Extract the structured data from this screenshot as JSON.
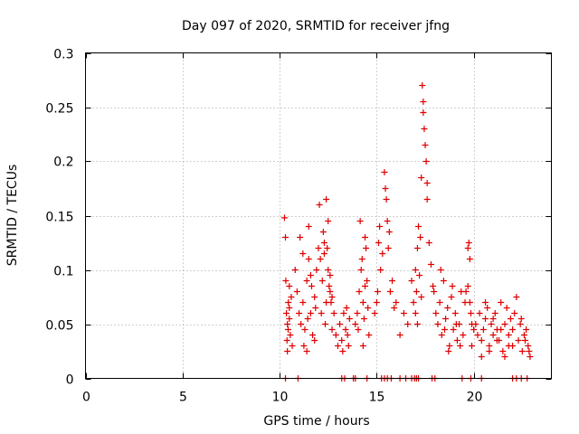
{
  "chart_data": {
    "type": "scatter",
    "title": "Day 097 of 2020, SRMTID for receiver jfng",
    "xlabel": "GPS time / hours",
    "ylabel": "SRMTID / TECUs",
    "xlim": [
      0,
      24
    ],
    "ylim": [
      0,
      0.3
    ],
    "xticks": [
      0,
      5,
      10,
      15,
      20
    ],
    "yticks": [
      0,
      0.05,
      0.1,
      0.15,
      0.2,
      0.25,
      0.3
    ],
    "xtick_labels": [
      "0",
      "5",
      "10",
      "15",
      "20"
    ],
    "ytick_labels": [
      "0",
      "0.05",
      "0.1",
      "0.15",
      "0.2",
      "0.25",
      "0.3"
    ],
    "grid": true,
    "marker": "+",
    "color": "#e00000",
    "series": [
      {
        "name": "SRMTID",
        "x": [
          10.25,
          10.3,
          10.35,
          10.4,
          10.45,
          10.5,
          10.55,
          10.32,
          10.38,
          10.44,
          10.5,
          10.6,
          10.65,
          10.4,
          10.5,
          10.8,
          10.9,
          11.0,
          11.1,
          11.2,
          11.3,
          11.4,
          11.5,
          11.6,
          11.7,
          11.8,
          11.9,
          12.0,
          11.05,
          11.25,
          11.45,
          11.65,
          11.85,
          11.5,
          11.8,
          11.2,
          11.4,
          11.6,
          12.05,
          12.1,
          12.2,
          12.3,
          12.4,
          12.5,
          12.6,
          12.15,
          12.25,
          12.35,
          12.45,
          12.55,
          12.65,
          12.7,
          12.8,
          12.9,
          13.0,
          12.4,
          12.5,
          12.3,
          12.6,
          12.7,
          13.1,
          13.2,
          13.3,
          13.4,
          13.5,
          13.6,
          13.25,
          13.45,
          13.55,
          13.9,
          14.0,
          14.1,
          14.2,
          14.3,
          14.4,
          14.5,
          14.05,
          14.15,
          14.25,
          14.35,
          14.45,
          14.55,
          14.6,
          14.3,
          14.4,
          14.9,
          15.0,
          15.05,
          15.1,
          15.15,
          15.2,
          15.3,
          15.4,
          15.45,
          15.5,
          15.55,
          15.6,
          15.65,
          15.7,
          15.8,
          15.9,
          16.0,
          16.2,
          16.4,
          16.6,
          16.8,
          16.9,
          17.0,
          17.05,
          17.1,
          17.15,
          17.2,
          17.25,
          17.3,
          17.35,
          17.4,
          17.45,
          17.5,
          17.55,
          17.6,
          17.7,
          17.8,
          17.9,
          17.0,
          17.1,
          17.3,
          17.4,
          17.6,
          17.95,
          18.05,
          18.15,
          18.25,
          18.35,
          18.45,
          18.55,
          18.65,
          18.75,
          18.85,
          18.95,
          19.05,
          19.15,
          19.25,
          19.35,
          19.45,
          19.55,
          18.3,
          18.5,
          18.7,
          18.9,
          19.1,
          19.3,
          19.6,
          19.7,
          19.75,
          19.8,
          19.85,
          19.9,
          20.0,
          19.7,
          19.8,
          19.9,
          20.1,
          20.2,
          20.3,
          20.4,
          20.5,
          20.6,
          20.7,
          20.8,
          20.9,
          21.0,
          21.1,
          21.2,
          21.3,
          21.4,
          21.5,
          21.6,
          21.7,
          21.8,
          21.9,
          22.0,
          22.1,
          22.2,
          20.4,
          20.6,
          20.8,
          21.0,
          21.2,
          21.4,
          21.6,
          21.8,
          22.0,
          22.3,
          22.4,
          22.5,
          22.6,
          22.7,
          22.8,
          22.9,
          22.45,
          22.65,
          22.85,
          10.3,
          10.95,
          13.2,
          13.35,
          13.8,
          13.9,
          14.5,
          15.25,
          15.4,
          15.55,
          15.75,
          16.2,
          16.5,
          16.8,
          16.95,
          17.05,
          17.15,
          17.85,
          18.0,
          19.4,
          19.85,
          20.4,
          22.0,
          22.2,
          22.45,
          22.75
        ],
        "y": [
          0.148,
          0.13,
          0.06,
          0.05,
          0.07,
          0.055,
          0.04,
          0.09,
          0.035,
          0.045,
          0.065,
          0.075,
          0.03,
          0.025,
          0.085,
          0.1,
          0.08,
          0.06,
          0.05,
          0.07,
          0.045,
          0.09,
          0.11,
          0.06,
          0.04,
          0.075,
          0.1,
          0.12,
          0.13,
          0.03,
          0.055,
          0.085,
          0.065,
          0.14,
          0.035,
          0.115,
          0.025,
          0.095,
          0.16,
          0.11,
          0.09,
          0.125,
          0.07,
          0.1,
          0.08,
          0.06,
          0.135,
          0.05,
          0.12,
          0.085,
          0.07,
          0.045,
          0.06,
          0.04,
          0.03,
          0.165,
          0.145,
          0.115,
          0.095,
          0.075,
          0.05,
          0.035,
          0.06,
          0.045,
          0.04,
          0.055,
          0.025,
          0.065,
          0.03,
          0.05,
          0.06,
          0.08,
          0.1,
          0.07,
          0.13,
          0.09,
          0.045,
          0.145,
          0.11,
          0.055,
          0.12,
          0.065,
          0.04,
          0.03,
          0.085,
          0.06,
          0.07,
          0.08,
          0.125,
          0.14,
          0.1,
          0.115,
          0.19,
          0.175,
          0.165,
          0.145,
          0.12,
          0.135,
          0.08,
          0.09,
          0.065,
          0.07,
          0.04,
          0.06,
          0.05,
          0.09,
          0.07,
          0.1,
          0.08,
          0.12,
          0.14,
          0.095,
          0.13,
          0.185,
          0.27,
          0.255,
          0.23,
          0.215,
          0.2,
          0.165,
          0.125,
          0.105,
          0.085,
          0.06,
          0.05,
          0.075,
          0.245,
          0.18,
          0.08,
          0.06,
          0.05,
          0.07,
          0.04,
          0.09,
          0.055,
          0.065,
          0.03,
          0.075,
          0.045,
          0.06,
          0.035,
          0.05,
          0.08,
          0.04,
          0.07,
          0.1,
          0.045,
          0.025,
          0.085,
          0.05,
          0.03,
          0.08,
          0.12,
          0.125,
          0.11,
          0.06,
          0.05,
          0.045,
          0.085,
          0.07,
          0.03,
          0.05,
          0.04,
          0.06,
          0.035,
          0.045,
          0.055,
          0.065,
          0.03,
          0.05,
          0.04,
          0.06,
          0.045,
          0.035,
          0.07,
          0.025,
          0.05,
          0.065,
          0.04,
          0.055,
          0.03,
          0.06,
          0.075,
          0.02,
          0.07,
          0.025,
          0.055,
          0.035,
          0.045,
          0.02,
          0.03,
          0.045,
          0.035,
          0.05,
          0.025,
          0.04,
          0.045,
          0.03,
          0.02,
          0.055,
          0.035,
          0.025,
          0,
          0,
          0,
          0,
          0,
          0,
          0,
          0,
          0,
          0,
          0,
          0,
          0,
          0,
          0,
          0,
          0,
          0,
          0,
          0,
          0,
          0,
          0,
          0,
          0,
          0
        ]
      }
    ]
  }
}
